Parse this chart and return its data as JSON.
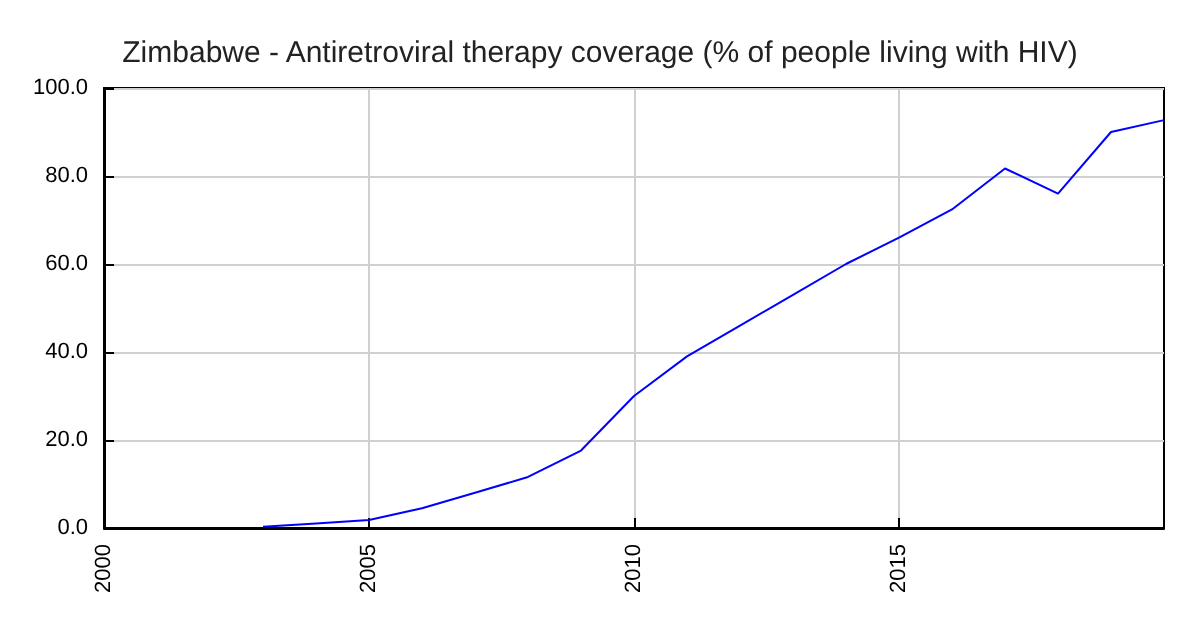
{
  "chart_data": {
    "type": "line",
    "title": "Zimbabwe - Antiretroviral therapy coverage (% of people living with HIV)",
    "x": [
      2003,
      2004,
      2005,
      2006,
      2007,
      2008,
      2009,
      2010,
      2011,
      2012,
      2013,
      2014,
      2015,
      2016,
      2017,
      2018,
      2019,
      2020
    ],
    "series": [
      {
        "color": "#0000ff",
        "values": [
          0.3,
          1,
          1.8,
          4.5,
          8,
          11.6,
          17.6,
          30,
          39,
          46,
          53,
          60,
          66,
          72.4,
          81.7,
          76,
          90,
          92.7
        ]
      }
    ],
    "xlim": [
      2000,
      2020
    ],
    "xticks": [
      2000,
      2005,
      2010,
      2015
    ],
    "ylim": [
      0,
      100
    ],
    "yticks": [
      {
        "value": 0,
        "label": "0.0"
      },
      {
        "value": 20,
        "label": "20.0"
      },
      {
        "value": 40,
        "label": "40.0"
      },
      {
        "value": 60,
        "label": "60.0"
      },
      {
        "value": 80,
        "label": "80.0"
      },
      {
        "value": 100,
        "label": "100.0"
      }
    ],
    "grid": true,
    "marker": "none",
    "line_style": "solid"
  }
}
